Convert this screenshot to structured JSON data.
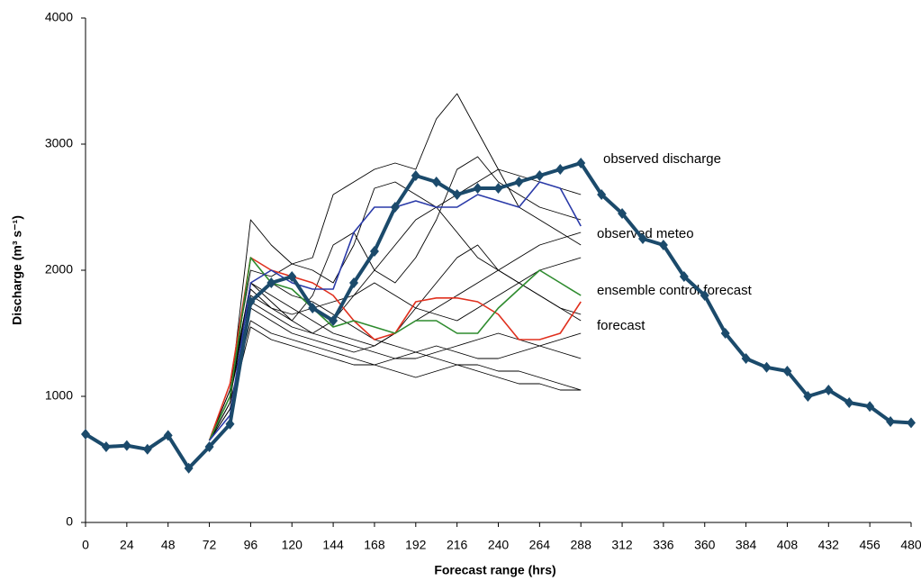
{
  "chart_data": {
    "type": "line",
    "xlabel": "Forecast range (hrs)",
    "ylabel": "Discharge (m³ s⁻¹)",
    "xlim": [
      0,
      480
    ],
    "xticks": [
      0,
      24,
      48,
      72,
      96,
      120,
      144,
      168,
      192,
      216,
      240,
      264,
      288,
      312,
      336,
      360,
      384,
      408,
      432,
      456,
      480
    ],
    "ylim": [
      0,
      4000
    ],
    "yticks": [
      0,
      1000,
      2000,
      3000,
      4000
    ],
    "series": [
      {
        "color": "#000000",
        "x": [
          72,
          84,
          96,
          108,
          120,
          132,
          144,
          156,
          168,
          180,
          192,
          204,
          216,
          228,
          240,
          252,
          264,
          276,
          288
        ],
        "values": [
          650,
          1000,
          2400,
          2200,
          2050,
          2100,
          2600,
          2700,
          2800,
          2850,
          2800,
          3200,
          3400,
          3100,
          2800,
          2500,
          2400,
          2300,
          2200
        ]
      },
      {
        "color": "#000000",
        "x": [
          72,
          84,
          96,
          108,
          120,
          132,
          144,
          156,
          168,
          180,
          192,
          204,
          216,
          228,
          240,
          252,
          264,
          276,
          288
        ],
        "values": [
          650,
          950,
          2100,
          1900,
          1800,
          1750,
          1650,
          1550,
          1450,
          1400,
          1350,
          1300,
          1250,
          1250,
          1200,
          1200,
          1150,
          1100,
          1050
        ]
      },
      {
        "color": "#000000",
        "x": [
          72,
          84,
          96,
          108,
          120,
          132,
          144,
          156,
          168,
          180,
          192,
          204,
          216,
          228,
          240,
          252,
          264,
          276,
          288
        ],
        "values": [
          650,
          1050,
          1900,
          1750,
          1600,
          1500,
          1450,
          1400,
          1350,
          1300,
          1300,
          1350,
          1400,
          1450,
          1500,
          1450,
          1400,
          1350,
          1300
        ]
      },
      {
        "color": "#000000",
        "x": [
          72,
          84,
          96,
          108,
          120,
          132,
          144,
          156,
          168,
          180,
          192,
          204,
          216,
          228,
          240,
          252,
          264,
          276,
          288
        ],
        "values": [
          650,
          1000,
          1850,
          1700,
          1600,
          1800,
          2200,
          2300,
          2000,
          1900,
          2100,
          2400,
          2800,
          2900,
          2700,
          2600,
          2500,
          2450,
          2400
        ]
      },
      {
        "color": "#000000",
        "x": [
          72,
          84,
          96,
          108,
          120,
          132,
          144,
          156,
          168,
          180,
          192,
          204,
          216,
          228,
          240,
          252,
          264,
          276,
          288
        ],
        "values": [
          650,
          900,
          1700,
          1600,
          1500,
          1450,
          1400,
          1350,
          1400,
          1500,
          1700,
          1900,
          2100,
          2200,
          2000,
          1900,
          1800,
          1700,
          1600
        ]
      },
      {
        "color": "#000000",
        "x": [
          72,
          84,
          96,
          108,
          120,
          132,
          144,
          156,
          168,
          180,
          192,
          204,
          216,
          228,
          240,
          252,
          264,
          276,
          288
        ],
        "values": [
          650,
          1100,
          2000,
          1950,
          2050,
          2000,
          1900,
          2200,
          2650,
          2700,
          2600,
          2500,
          2300,
          2100,
          2000,
          1900,
          1800,
          1700,
          1650
        ]
      },
      {
        "color": "#000000",
        "x": [
          72,
          84,
          96,
          108,
          120,
          132,
          144,
          156,
          168,
          180,
          192,
          204,
          216,
          228,
          240,
          252,
          264,
          276,
          288
        ],
        "values": [
          650,
          950,
          1600,
          1500,
          1450,
          1400,
          1350,
          1300,
          1250,
          1200,
          1150,
          1200,
          1250,
          1200,
          1150,
          1100,
          1100,
          1050,
          1050
        ]
      },
      {
        "color": "#000000",
        "x": [
          72,
          84,
          96,
          108,
          120,
          132,
          144,
          156,
          168,
          180,
          192,
          204,
          216,
          228,
          240,
          252,
          264,
          276,
          288
        ],
        "values": [
          650,
          1000,
          1750,
          1650,
          1550,
          1500,
          1600,
          1800,
          2000,
          2200,
          2400,
          2500,
          2600,
          2700,
          2800,
          2750,
          2700,
          2650,
          2600
        ]
      },
      {
        "color": "#000000",
        "x": [
          72,
          84,
          96,
          108,
          120,
          132,
          144,
          156,
          168,
          180,
          192,
          204,
          216,
          228,
          240,
          252,
          264,
          276,
          288
        ],
        "values": [
          650,
          1050,
          1800,
          1700,
          1650,
          1700,
          1750,
          1800,
          1900,
          1800,
          1700,
          1650,
          1600,
          1700,
          1800,
          1900,
          2000,
          2050,
          2100
        ]
      },
      {
        "color": "#000000",
        "x": [
          72,
          84,
          96,
          108,
          120,
          132,
          144,
          156,
          168,
          180,
          192,
          204,
          216,
          228,
          240,
          252,
          264,
          276,
          288
        ],
        "values": [
          650,
          900,
          1550,
          1450,
          1400,
          1350,
          1300,
          1250,
          1250,
          1300,
          1350,
          1400,
          1350,
          1300,
          1300,
          1350,
          1400,
          1450,
          1500
        ]
      },
      {
        "color": "#000000",
        "x": [
          72,
          84,
          96,
          108,
          120,
          132,
          144,
          156,
          168,
          180,
          192,
          204,
          216,
          228,
          240,
          252,
          264,
          276,
          288
        ],
        "values": [
          650,
          1000,
          1900,
          1800,
          1700,
          1600,
          1500,
          1450,
          1400,
          1500,
          1600,
          1700,
          1800,
          1900,
          2000,
          2100,
          2200,
          2250,
          2300
        ]
      },
      {
        "name": "forecast",
        "color": "#e0301e",
        "x": [
          72,
          84,
          96,
          108,
          120,
          132,
          144,
          156,
          168,
          180,
          192,
          204,
          216,
          228,
          240,
          252,
          264,
          276,
          288
        ],
        "values": [
          650,
          1100,
          2100,
          2000,
          1950,
          1900,
          1800,
          1600,
          1450,
          1500,
          1750,
          1780,
          1780,
          1750,
          1650,
          1450,
          1450,
          1500,
          1750
        ]
      },
      {
        "name": "ensemble control forecast",
        "color": "#2e8b2e",
        "x": [
          72,
          84,
          96,
          108,
          120,
          132,
          144,
          156,
          168,
          180,
          192,
          204,
          216,
          228,
          240,
          252,
          264,
          276,
          288
        ],
        "values": [
          650,
          1000,
          2100,
          1900,
          1850,
          1700,
          1550,
          1600,
          1550,
          1500,
          1600,
          1600,
          1500,
          1500,
          1700,
          1850,
          2000,
          1900,
          1800
        ]
      },
      {
        "name": "observed meteo",
        "color": "#2a3aa8",
        "x": [
          72,
          84,
          96,
          108,
          120,
          132,
          144,
          156,
          168,
          180,
          192,
          204,
          216,
          228,
          240,
          252,
          264,
          276,
          288
        ],
        "values": [
          650,
          850,
          1900,
          2000,
          1900,
          1850,
          1850,
          2300,
          2500,
          2500,
          2550,
          2500,
          2500,
          2600,
          2550,
          2500,
          2700,
          2650,
          2350
        ]
      },
      {
        "name": "observed discharge",
        "color": "#1b4a6b",
        "x": [
          0,
          12,
          24,
          36,
          48,
          60,
          72,
          84,
          96,
          108,
          120,
          132,
          144,
          156,
          168,
          180,
          192,
          204,
          216,
          228,
          240,
          252,
          264,
          276,
          288,
          300,
          312,
          324,
          336,
          348,
          360,
          372,
          384,
          396,
          408,
          420,
          432,
          444,
          456,
          468,
          480
        ],
        "values": [
          700,
          600,
          610,
          580,
          690,
          430,
          600,
          780,
          1750,
          1900,
          1950,
          1700,
          1600,
          1900,
          2150,
          2500,
          2750,
          2700,
          2600,
          2650,
          2650,
          2700,
          2750,
          2800,
          2850,
          2600,
          2450,
          2250,
          2200,
          1950,
          1800,
          1500,
          1300,
          1230,
          1200,
          1000,
          1050,
          950,
          920,
          800,
          790
        ]
      }
    ]
  }
}
